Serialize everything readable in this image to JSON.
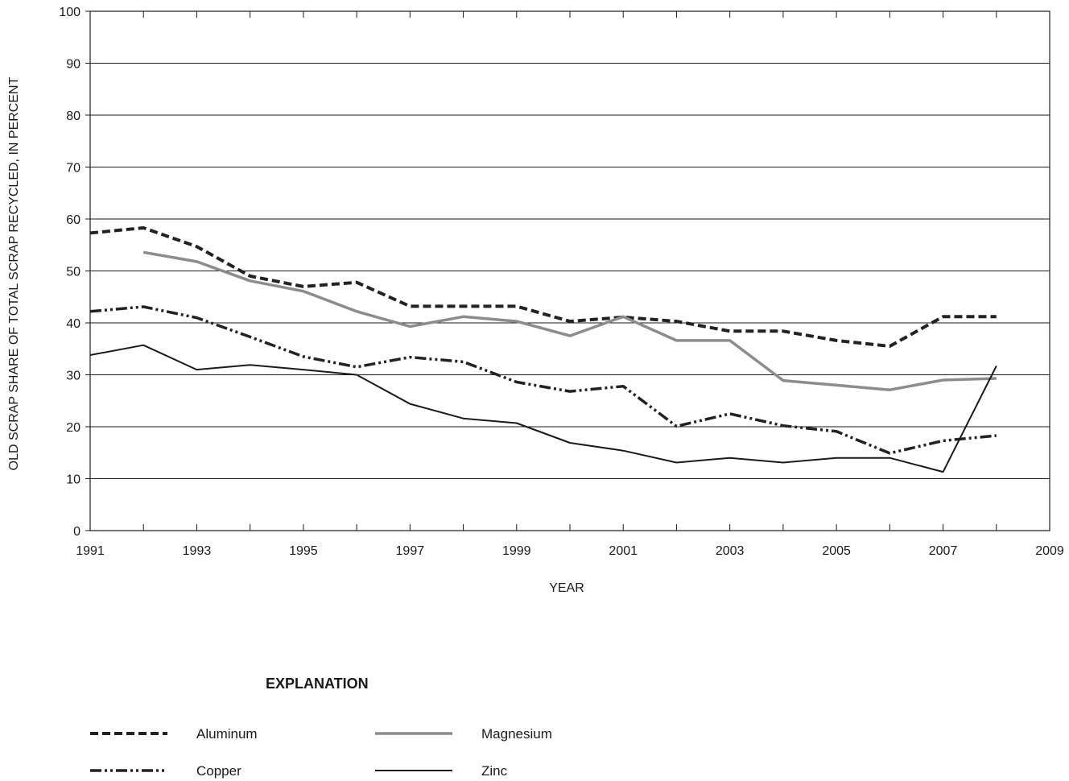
{
  "chart_data": {
    "type": "line",
    "xlabel": "YEAR",
    "ylabel": "OLD SCRAP SHARE OF TOTAL SCRAP RECYCLED, IN PERCENT",
    "xlim": [
      1991,
      2009
    ],
    "ylim": [
      0,
      100
    ],
    "x_ticks": [
      1991,
      1993,
      1995,
      1997,
      1999,
      2001,
      2003,
      2005,
      2007,
      2009
    ],
    "y_ticks": [
      0,
      10,
      20,
      30,
      40,
      50,
      60,
      70,
      80,
      90,
      100
    ],
    "grid": "horizontal",
    "legend_title": "EXPLANATION",
    "legend_position": "bottom",
    "series": [
      {
        "name": "Aluminum",
        "style": "dashed",
        "color": "#222222",
        "x": [
          1991,
          1992,
          1993,
          1994,
          1995,
          1996,
          1997,
          1998,
          1999,
          2000,
          2001,
          2002,
          2003,
          2004,
          2005,
          2006,
          2007,
          2008
        ],
        "values": [
          57.3,
          58.3,
          54.7,
          49.0,
          47.0,
          47.8,
          43.2,
          43.2,
          43.2,
          40.3,
          41.1,
          40.3,
          38.4,
          38.4,
          36.6,
          35.5,
          41.2,
          41.2
        ]
      },
      {
        "name": "Magnesium",
        "style": "solid-thick",
        "color": "#8c8c8c",
        "x": [
          1992,
          1993,
          1994,
          1995,
          1996,
          1997,
          1998,
          1999,
          2000,
          2001,
          2002,
          2003,
          2004,
          2005,
          2006,
          2007,
          2008
        ],
        "values": [
          53.6,
          51.8,
          48.1,
          46.1,
          42.2,
          39.3,
          41.2,
          40.3,
          37.5,
          41.2,
          36.6,
          36.6,
          28.9,
          28.0,
          27.1,
          29.0,
          29.3
        ]
      },
      {
        "name": "Copper",
        "style": "dash-dot-dot",
        "color": "#222222",
        "x": [
          1991,
          1992,
          1993,
          1994,
          1995,
          1996,
          1997,
          1998,
          1999,
          2000,
          2001,
          2002,
          2003,
          2004,
          2005,
          2006,
          2007,
          2008
        ],
        "values": [
          42.2,
          43.1,
          41.0,
          37.3,
          33.5,
          31.5,
          33.4,
          32.5,
          28.6,
          26.8,
          27.8,
          20.1,
          22.5,
          20.2,
          19.1,
          14.9,
          17.3,
          18.3
        ]
      },
      {
        "name": "Zinc",
        "style": "solid-thin",
        "color": "#1a1a1a",
        "x": [
          1991,
          1992,
          1993,
          1994,
          1995,
          1996,
          1997,
          1998,
          1999,
          2000,
          2001,
          2002,
          2003,
          2004,
          2005,
          2006,
          2007,
          2008
        ],
        "values": [
          33.8,
          35.7,
          31.0,
          31.9,
          31.0,
          30.0,
          24.4,
          21.6,
          20.7,
          16.9,
          15.4,
          13.1,
          14.0,
          13.1,
          14.0,
          14.0,
          11.3,
          31.7
        ]
      }
    ]
  }
}
